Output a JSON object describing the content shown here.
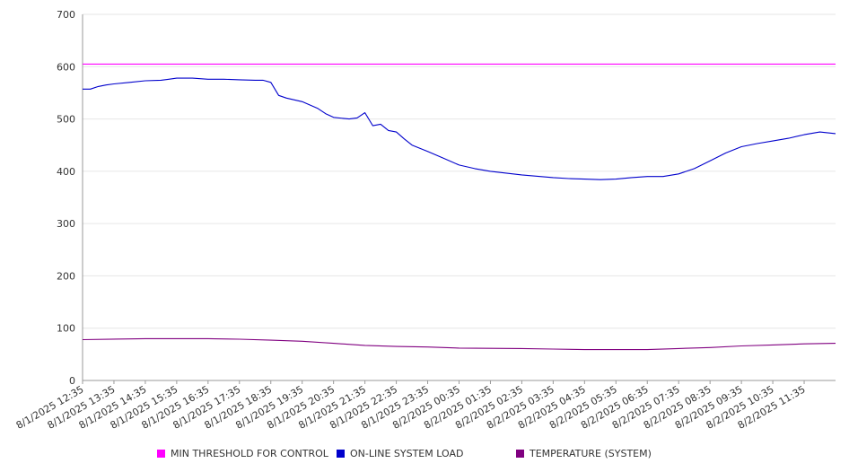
{
  "chart_data": {
    "type": "line",
    "title": "",
    "xlabel": "",
    "ylabel": "",
    "ylim": [
      0,
      700
    ],
    "y_ticks": [
      0,
      100,
      200,
      300,
      400,
      500,
      600,
      700
    ],
    "grid": "horizontal",
    "legend_position": "bottom",
    "x_tick_labels": [
      "8/1/2025 12:35",
      "8/1/2025 13:35",
      "8/1/2025 14:35",
      "8/1/2025 15:35",
      "8/1/2025 16:35",
      "8/1/2025 17:35",
      "8/1/2025 18:35",
      "8/1/2025 19:35",
      "8/1/2025 20:35",
      "8/1/2025 21:35",
      "8/1/2025 22:35",
      "8/1/2025 23:35",
      "8/2/2025 00:35",
      "8/2/2025 01:35",
      "8/2/2025 02:35",
      "8/2/2025 03:35",
      "8/2/2025 04:35",
      "8/2/2025 05:35",
      "8/2/2025 06:35",
      "8/2/2025 07:35",
      "8/2/2025 08:35",
      "8/2/2025 09:35",
      "8/2/2025 10:35",
      "8/2/2025 11:35"
    ],
    "x_range": [
      "8/1/2025 12:35",
      "8/2/2025 12:35"
    ],
    "series": [
      {
        "name": "MIN THRESHOLD FOR CONTROL",
        "color": "#ff00ff",
        "x": [
          "8/1/2025 12:35",
          "8/2/2025 12:35"
        ],
        "values": [
          605,
          605
        ]
      },
      {
        "name": "ON-LINE SYSTEM LOAD",
        "color": "#0000cc",
        "x": [
          "8/1/2025 12:35",
          "8/1/2025 12:50",
          "8/1/2025 13:05",
          "8/1/2025 13:20",
          "8/1/2025 13:35",
          "8/1/2025 14:05",
          "8/1/2025 14:35",
          "8/1/2025 15:05",
          "8/1/2025 15:20",
          "8/1/2025 15:35",
          "8/1/2025 16:05",
          "8/1/2025 16:35",
          "8/1/2025 17:05",
          "8/1/2025 17:35",
          "8/1/2025 18:05",
          "8/1/2025 18:20",
          "8/1/2025 18:35",
          "8/1/2025 18:50",
          "8/1/2025 19:05",
          "8/1/2025 19:35",
          "8/1/2025 20:05",
          "8/1/2025 20:20",
          "8/1/2025 20:35",
          "8/1/2025 21:05",
          "8/1/2025 21:20",
          "8/1/2025 21:35",
          "8/1/2025 21:50",
          "8/1/2025 22:05",
          "8/1/2025 22:20",
          "8/1/2025 22:35",
          "8/1/2025 22:50",
          "8/1/2025 23:05",
          "8/1/2025 23:35",
          "8/2/2025 00:05",
          "8/2/2025 00:35",
          "8/2/2025 01:05",
          "8/2/2025 01:35",
          "8/2/2025 02:35",
          "8/2/2025 03:35",
          "8/2/2025 04:05",
          "8/2/2025 04:35",
          "8/2/2025 05:05",
          "8/2/2025 05:35",
          "8/2/2025 06:05",
          "8/2/2025 06:35",
          "8/2/2025 07:05",
          "8/2/2025 07:35",
          "8/2/2025 08:05",
          "8/2/2025 08:35",
          "8/2/2025 09:05",
          "8/2/2025 09:35",
          "8/2/2025 10:05",
          "8/2/2025 10:35",
          "8/2/2025 11:05",
          "8/2/2025 11:35",
          "8/2/2025 12:05",
          "8/2/2025 12:35"
        ],
        "values": [
          557,
          557,
          562,
          565,
          567,
          570,
          573,
          574,
          576,
          578,
          578,
          576,
          576,
          575,
          574,
          574,
          570,
          545,
          540,
          533,
          520,
          510,
          503,
          500,
          502,
          512,
          487,
          490,
          478,
          475,
          462,
          450,
          438,
          425,
          412,
          405,
          400,
          393,
          388,
          386,
          385,
          384,
          385,
          388,
          390,
          390,
          395,
          405,
          420,
          435,
          447,
          453,
          458,
          463,
          470,
          475,
          472
        ]
      },
      {
        "name": "TEMPERATURE (SYSTEM)",
        "color": "#800080",
        "x": [
          "8/1/2025 12:35",
          "8/1/2025 14:35",
          "8/1/2025 16:35",
          "8/1/2025 17:35",
          "8/1/2025 18:35",
          "8/1/2025 19:35",
          "8/1/2025 20:35",
          "8/1/2025 21:35",
          "8/1/2025 22:35",
          "8/1/2025 23:35",
          "8/2/2025 00:35",
          "8/2/2025 02:35",
          "8/2/2025 03:35",
          "8/2/2025 04:35",
          "8/2/2025 06:35",
          "8/2/2025 07:35",
          "8/2/2025 08:35",
          "8/2/2025 09:35",
          "8/2/2025 10:35",
          "8/2/2025 11:35",
          "8/2/2025 12:35"
        ],
        "values": [
          78,
          80,
          80,
          79,
          77,
          75,
          71,
          67,
          65,
          64,
          62,
          61,
          60,
          59,
          59,
          61,
          63,
          66,
          68,
          70,
          71
        ]
      }
    ]
  }
}
